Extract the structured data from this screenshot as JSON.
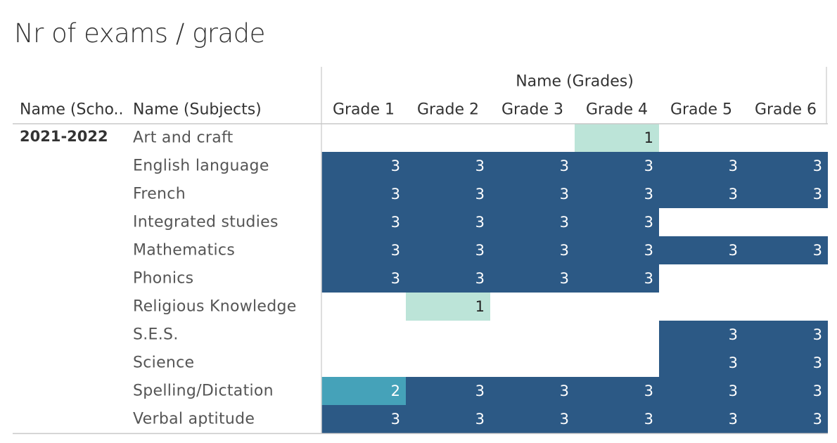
{
  "title": "Nr of exams / grade",
  "chart_data": {
    "type": "heatmap",
    "title": "Nr of exams / grade",
    "column_group_header": "Name (Grades)",
    "row_headers": [
      "Name (Scho..",
      "Name (Subjects)"
    ],
    "school": "2021-2022",
    "columns": [
      "Grade 1",
      "Grade 2",
      "Grade 3",
      "Grade 4",
      "Grade 5",
      "Grade 6"
    ],
    "rows": [
      "Art and craft",
      "English language",
      "French",
      "Integrated studies",
      "Mathematics",
      "Phonics",
      "Religious Knowledge",
      "S.E.S.",
      "Science",
      "Spelling/Dictation",
      "Verbal aptitude"
    ],
    "values": [
      [
        null,
        null,
        null,
        1,
        null,
        null
      ],
      [
        3,
        3,
        3,
        3,
        3,
        3
      ],
      [
        3,
        3,
        3,
        3,
        3,
        3
      ],
      [
        3,
        3,
        3,
        3,
        null,
        null
      ],
      [
        3,
        3,
        3,
        3,
        3,
        3
      ],
      [
        3,
        3,
        3,
        3,
        null,
        null
      ],
      [
        null,
        1,
        null,
        null,
        null,
        null
      ],
      [
        null,
        null,
        null,
        null,
        3,
        3
      ],
      [
        null,
        null,
        null,
        null,
        3,
        3
      ],
      [
        2,
        3,
        3,
        3,
        3,
        3
      ],
      [
        3,
        3,
        3,
        3,
        3,
        3
      ]
    ],
    "color_scale": {
      "1": "#bce4d8",
      "2": "#45a2b9",
      "3": "#2c5985"
    }
  }
}
